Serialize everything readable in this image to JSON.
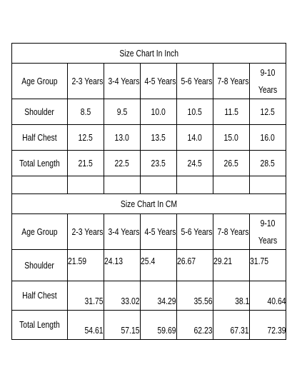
{
  "tables": [
    {
      "title": "Size Chart In Inch",
      "header": [
        "Age Group",
        "2-3 Years",
        "3-4 Years",
        "4-5 Years",
        "5-6 Years",
        "7-8 Years",
        "9-10 Years"
      ],
      "rows": [
        [
          "Shoulder",
          "8.5",
          "9.5",
          "10.0",
          "10.5",
          "11.5",
          "12.5"
        ],
        [
          "Half Chest",
          "12.5",
          "13.0",
          "13.5",
          "14.0",
          "15.0",
          "16.0"
        ],
        [
          "Total Length",
          "21.5",
          "22.5",
          "23.5",
          "24.5",
          "26.5",
          "28.5"
        ]
      ]
    },
    {
      "title": "Size Chart In CM",
      "header": [
        "Age Group",
        "2-3 Years",
        "3-4 Years",
        "4-5 Years",
        "5-6 Years",
        "7-8 Years",
        "9-10 Years"
      ],
      "rows": [
        [
          "Shoulder",
          "21.59",
          "24.13",
          "25.4",
          "26.67",
          "29.21",
          "31.75"
        ],
        [
          "Half Chest",
          "31.75",
          "33.02",
          "34.29",
          "35.56",
          "38.1",
          "40.64"
        ],
        [
          "Total Length",
          "54.61",
          "57.15",
          "59.69",
          "62.23",
          "67.31",
          "72.39"
        ]
      ]
    }
  ]
}
